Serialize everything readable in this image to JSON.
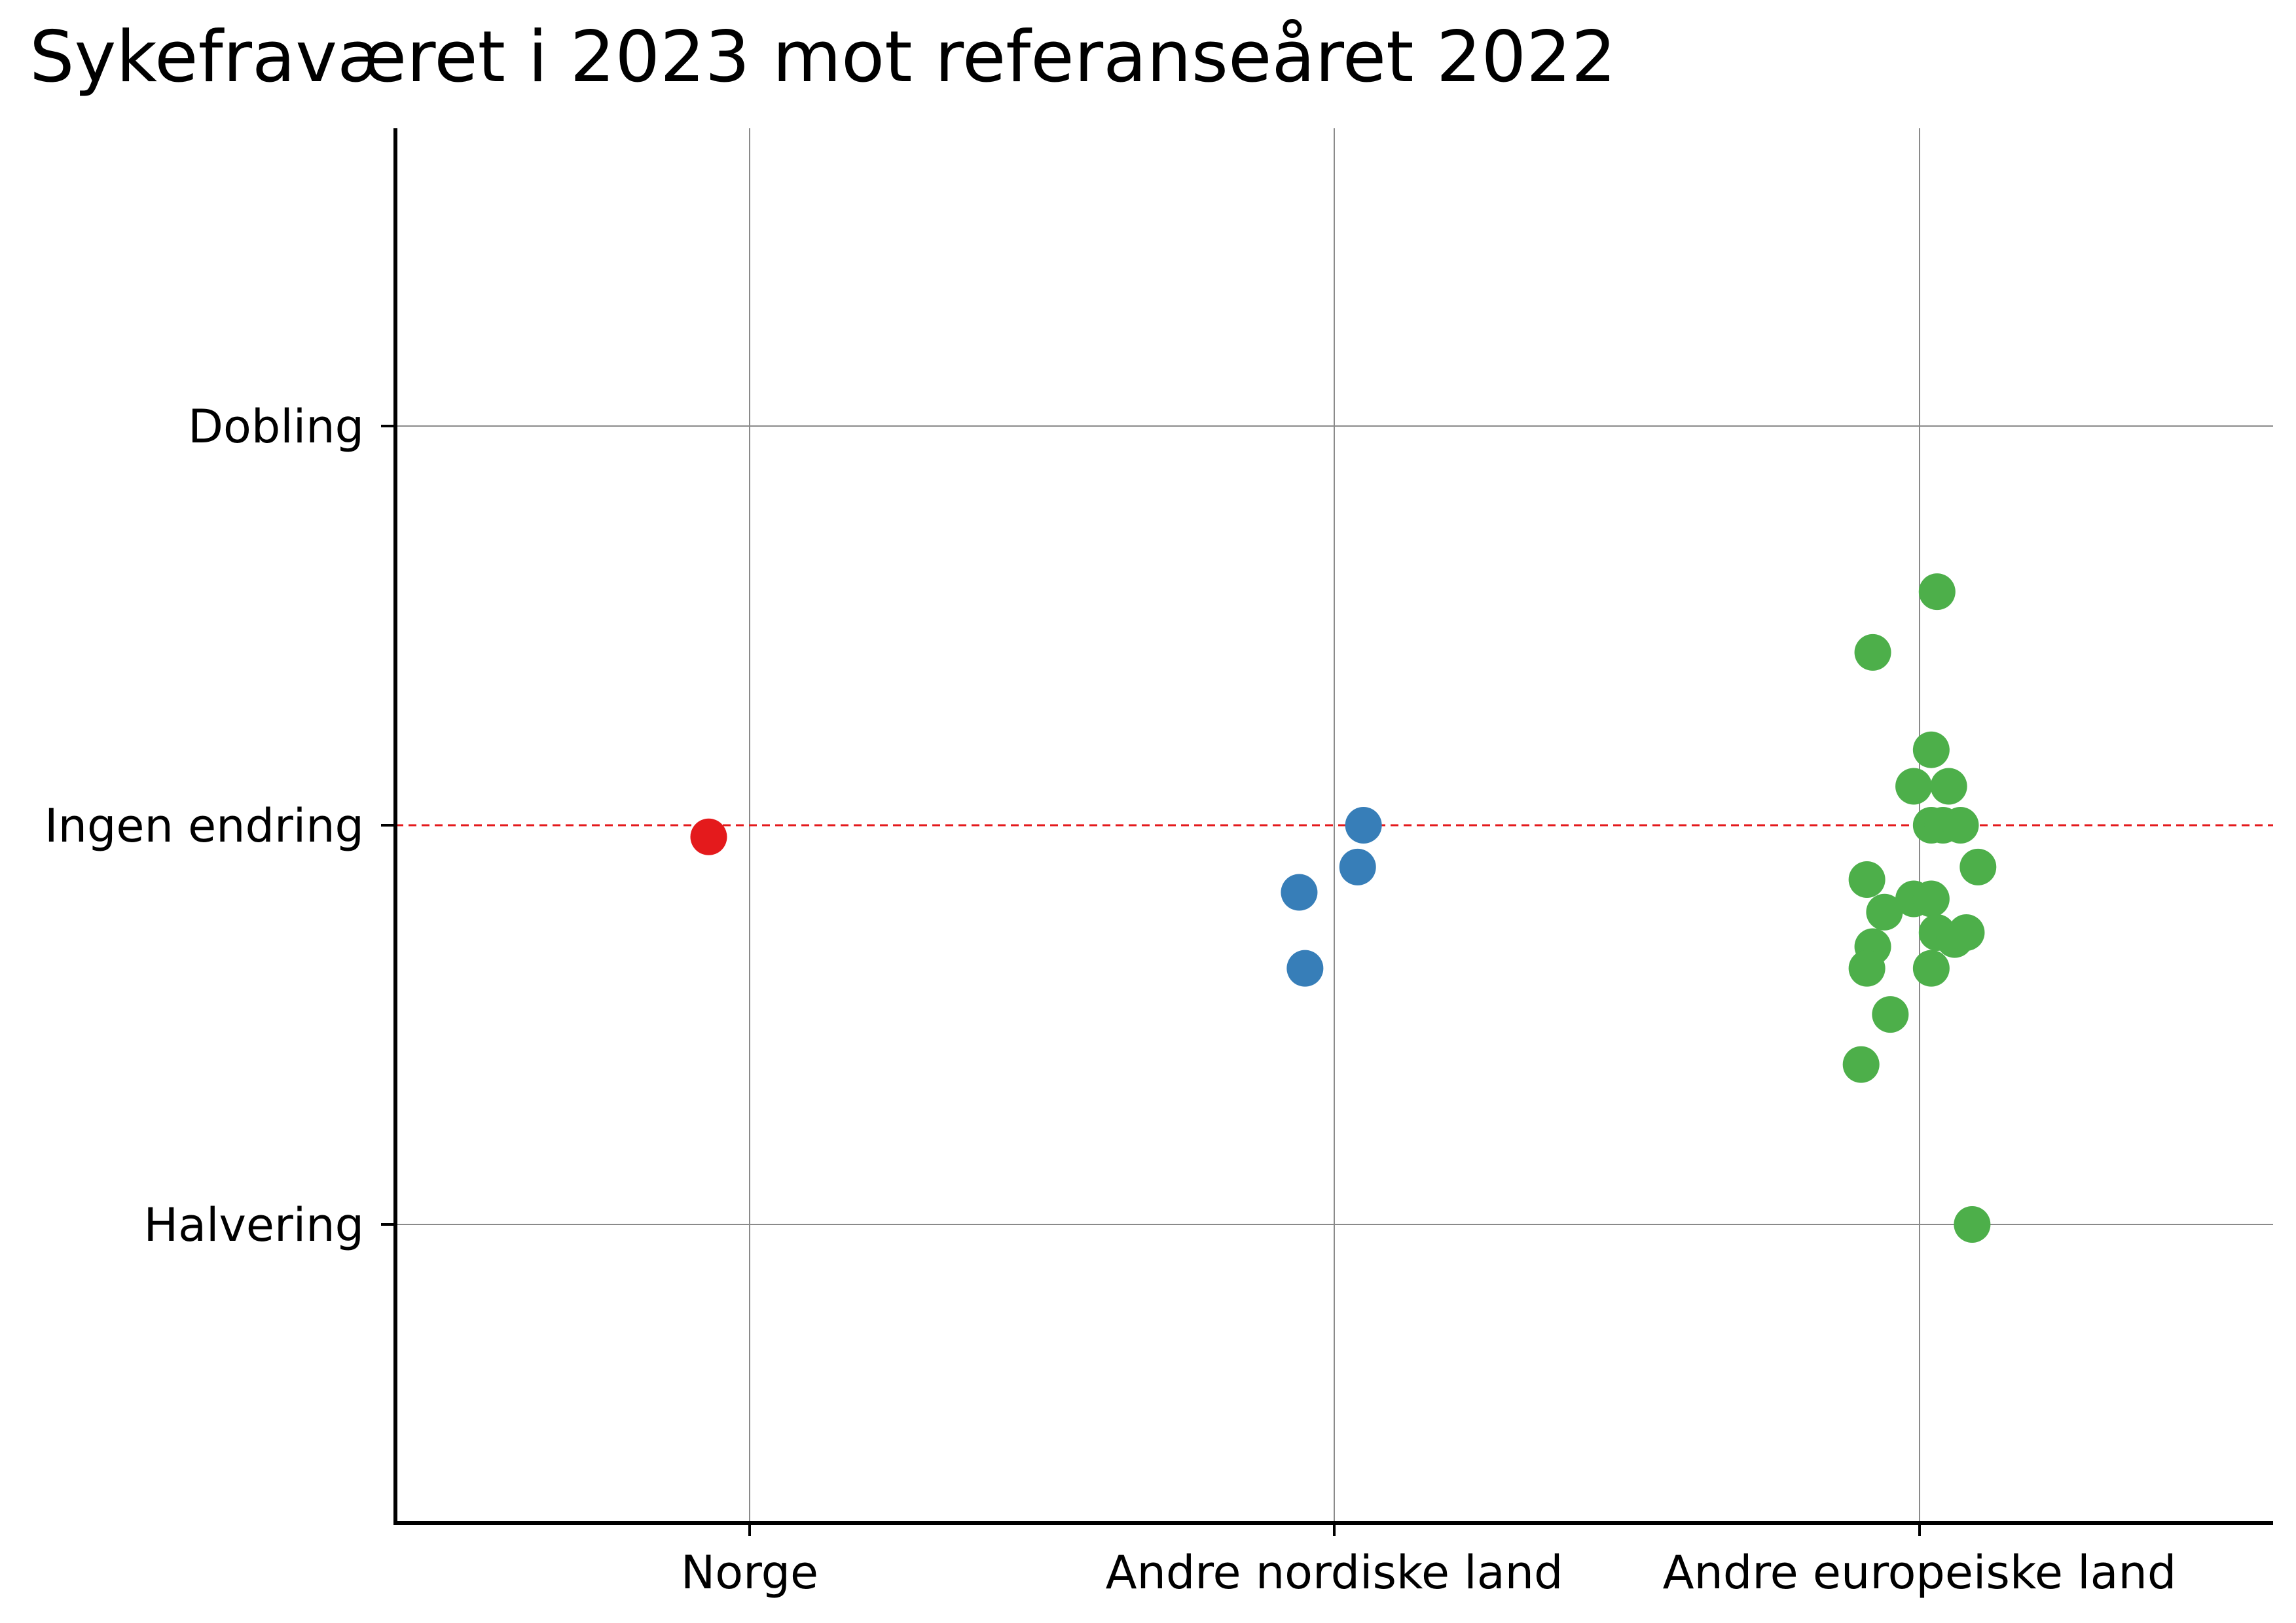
{
  "chart_data": {
    "type": "scatter",
    "title": "Sykefraværet i 2023 mot referanseåret 2022",
    "xlabel": "",
    "ylabel": "",
    "scale": "log2",
    "categories": [
      "Norge",
      "Andre nordiske land",
      "Andre europeiske land"
    ],
    "y_ticks": [
      {
        "value": 2.0,
        "label": "Dobling"
      },
      {
        "value": 1.0,
        "label": "Ingen endring"
      },
      {
        "value": 0.5,
        "label": "Halvering"
      }
    ],
    "ylim": [
      0.3,
      3.3
    ],
    "grid": true,
    "reference_line": {
      "value": 1.0,
      "color": "#e41a1c",
      "style": "dashed"
    },
    "series": [
      {
        "category": "Norge",
        "color": "#e41a1c",
        "points": [
          {
            "jitter": -0.07,
            "value": 0.98
          }
        ]
      },
      {
        "category": "Andre nordiske land",
        "color": "#377eb8",
        "points": [
          {
            "jitter": 0.05,
            "value": 1.0
          },
          {
            "jitter": 0.04,
            "value": 0.93
          },
          {
            "jitter": -0.06,
            "value": 0.89
          },
          {
            "jitter": -0.05,
            "value": 0.78
          }
        ]
      },
      {
        "category": "Andre europeiske land",
        "color": "#4daf4a",
        "points": [
          {
            "jitter": 0.03,
            "value": 1.5
          },
          {
            "jitter": -0.08,
            "value": 1.35
          },
          {
            "jitter": 0.02,
            "value": 1.14
          },
          {
            "jitter": -0.01,
            "value": 1.07
          },
          {
            "jitter": 0.05,
            "value": 1.07
          },
          {
            "jitter": 0.02,
            "value": 1.0
          },
          {
            "jitter": 0.04,
            "value": 1.0
          },
          {
            "jitter": 0.07,
            "value": 1.0
          },
          {
            "jitter": 0.1,
            "value": 0.93
          },
          {
            "jitter": -0.09,
            "value": 0.91
          },
          {
            "jitter": -0.01,
            "value": 0.88
          },
          {
            "jitter": 0.02,
            "value": 0.88
          },
          {
            "jitter": -0.06,
            "value": 0.86
          },
          {
            "jitter": 0.03,
            "value": 0.83
          },
          {
            "jitter": 0.08,
            "value": 0.83
          },
          {
            "jitter": 0.06,
            "value": 0.82
          },
          {
            "jitter": -0.08,
            "value": 0.81
          },
          {
            "jitter": -0.09,
            "value": 0.78
          },
          {
            "jitter": 0.02,
            "value": 0.78
          },
          {
            "jitter": -0.05,
            "value": 0.72
          },
          {
            "jitter": -0.1,
            "value": 0.66
          },
          {
            "jitter": 0.09,
            "value": 0.5
          }
        ]
      }
    ]
  }
}
